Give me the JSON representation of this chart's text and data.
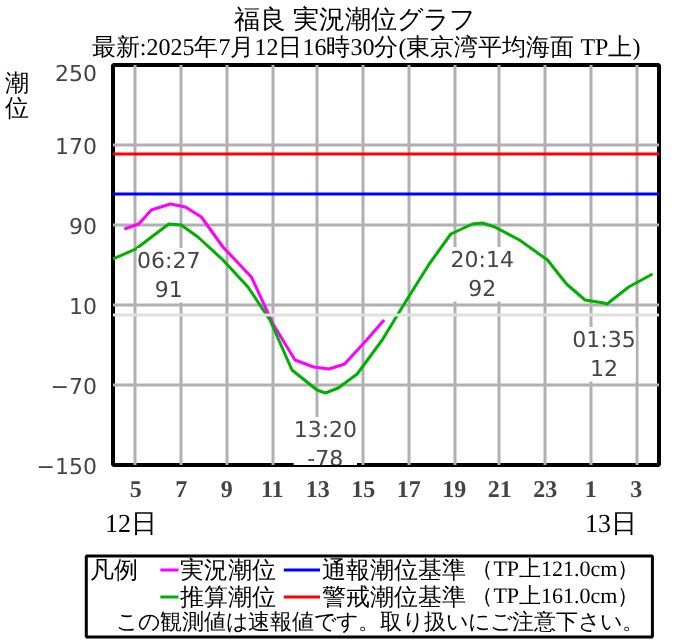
{
  "chart_data": {
    "type": "line",
    "title": "福良 実況潮位グラフ",
    "subtitle": "最新:2025年7月12日16時30分(東京湾平均海面 TP上)",
    "ylabel": "潮位",
    "x": [
      "2025-07-12T04:30",
      "2025-07-12T05:08",
      "2025-07-12T05:41",
      "2025-07-12T06:31",
      "2025-07-12T07:11",
      "2025-07-12T07:53",
      "2025-07-12T08:50",
      "2025-07-12T10:05",
      "2025-07-12T11:02",
      "2025-07-12T12:00",
      "2025-07-12T12:49",
      "2025-07-12T13:30",
      "2025-07-12T14:11",
      "2025-07-12T15:09",
      "2025-07-12T15:55"
    ],
    "series": [
      {
        "name": "実況潮位",
        "color": "#ff00ff",
        "values": [
          86,
          91,
          105,
          111,
          108,
          98,
          68,
          38,
          -9,
          -45,
          -52,
          -54,
          -49,
          -25,
          -5
        ]
      },
      {
        "name": "推算潮位",
        "color": "#00b000",
        "x": [
          "2025-07-12T04:00",
          "2025-07-12T05:00",
          "2025-07-12T06:27",
          "2025-07-12T07:00",
          "2025-07-12T07:44",
          "2025-07-12T08:50",
          "2025-07-12T09:56",
          "2025-07-12T10:54",
          "2025-07-12T11:52",
          "2025-07-12T12:58",
          "2025-07-12T13:20",
          "2025-07-12T13:54",
          "2025-07-12T14:44",
          "2025-07-12T15:50",
          "2025-07-12T16:48",
          "2025-07-12T17:54",
          "2025-07-12T18:51",
          "2025-07-12T19:48",
          "2025-07-12T20:14",
          "2025-07-12T20:47",
          "2025-07-12T21:52",
          "2025-07-12T23:06",
          "2025-07-12T23:56",
          "2025-07-13T00:45",
          "2025-07-13T01:35",
          "2025-07-13T01:43",
          "2025-07-13T02:40",
          "2025-07-13T03:43"
        ],
        "values": [
          56,
          66,
          91,
          90,
          78,
          55,
          28,
          -5,
          -55,
          -75,
          -78,
          -73,
          -59,
          -25,
          11,
          51,
          81,
          91,
          92,
          88,
          75,
          55,
          31,
          15,
          12,
          11,
          28,
          41
        ]
      }
    ],
    "xlim": [
      "2025-07-12T04:00",
      "2025-07-13T04:00"
    ],
    "xticks": [
      {
        "value": "2025-07-12T05:00",
        "label": "5"
      },
      {
        "value": "2025-07-12T07:00",
        "label": "7"
      },
      {
        "value": "2025-07-12T09:00",
        "label": "9"
      },
      {
        "value": "2025-07-12T11:00",
        "label": "11"
      },
      {
        "value": "2025-07-12T13:00",
        "label": "13"
      },
      {
        "value": "2025-07-12T15:00",
        "label": "15"
      },
      {
        "value": "2025-07-12T17:00",
        "label": "17"
      },
      {
        "value": "2025-07-12T19:00",
        "label": "19"
      },
      {
        "value": "2025-07-12T21:00",
        "label": "21"
      },
      {
        "value": "2025-07-12T23:00",
        "label": "23"
      },
      {
        "value": "2025-07-13T01:00",
        "label": "1"
      },
      {
        "value": "2025-07-13T03:00",
        "label": "3"
      }
    ],
    "ylim": [
      -150,
      250
    ],
    "yticks": [
      -150,
      -70,
      10,
      90,
      170,
      250
    ],
    "grid": true,
    "legend": "bottom",
    "legend_title": "凡例",
    "ref_lines": [
      {
        "axis": "y",
        "value": 121,
        "label": "通報潮位基準 （TP上121.0cm）",
        "color": "#0000ff"
      },
      {
        "axis": "y",
        "value": 161,
        "label": "警戒潮位基準 （TP上161.0cm）",
        "color": "#ff0000"
      },
      {
        "axis": "y",
        "value": 0,
        "color": "#e0e0e0"
      }
    ],
    "annotations": [
      {
        "text": "06:27\n91",
        "x": "2025-07-12T06:27",
        "y": 91
      },
      {
        "text": "13:20\n-78",
        "x": "2025-07-12T13:20",
        "y": -78
      },
      {
        "text": "20:14\n92",
        "x": "2025-07-12T20:14",
        "y": 92
      },
      {
        "text": "01:35\n12",
        "x": "2025-07-13T01:35",
        "y": 12
      },
      "12日",
      "13日",
      "この観測値は速報値です。取り扱いにご注意下さい。"
    ]
  }
}
